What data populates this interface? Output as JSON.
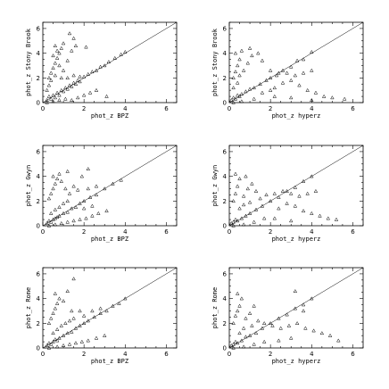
{
  "chart_data": [
    {
      "type": "scatter",
      "xlabel": "phot_z BPZ",
      "ylabel": "phot_z Stony Brook",
      "xlim": [
        0,
        6.5
      ],
      "ylim": [
        0,
        6.5
      ],
      "xticks": [
        0,
        2,
        4,
        6
      ],
      "yticks": [
        0,
        2,
        4,
        6
      ],
      "reference_line": "y = x",
      "marker": "triangle",
      "points": [
        [
          0.2,
          0.2
        ],
        [
          0.3,
          0.5
        ],
        [
          0.4,
          0.3
        ],
        [
          0.5,
          0.6
        ],
        [
          0.6,
          0.4
        ],
        [
          0.7,
          0.8
        ],
        [
          0.8,
          0.6
        ],
        [
          0.9,
          1.0
        ],
        [
          1.0,
          0.9
        ],
        [
          1.1,
          1.2
        ],
        [
          1.2,
          1.1
        ],
        [
          1.3,
          1.4
        ],
        [
          1.4,
          1.3
        ],
        [
          1.5,
          1.6
        ],
        [
          1.6,
          1.5
        ],
        [
          1.7,
          1.8
        ],
        [
          1.8,
          1.7
        ],
        [
          2.0,
          2.1
        ],
        [
          2.2,
          2.3
        ],
        [
          2.4,
          2.5
        ],
        [
          2.6,
          2.6
        ],
        [
          2.8,
          2.9
        ],
        [
          3.0,
          3.0
        ],
        [
          3.2,
          3.3
        ],
        [
          3.5,
          3.6
        ],
        [
          3.8,
          3.9
        ],
        [
          4.0,
          4.1
        ],
        [
          0.3,
          2.0
        ],
        [
          0.4,
          2.4
        ],
        [
          0.5,
          2.8
        ],
        [
          0.6,
          3.2
        ],
        [
          0.7,
          3.6
        ],
        [
          0.8,
          4.0
        ],
        [
          0.9,
          4.4
        ],
        [
          1.0,
          4.8
        ],
        [
          0.5,
          3.8
        ],
        [
          0.6,
          4.6
        ],
        [
          0.7,
          4.2
        ],
        [
          0.8,
          3.0
        ],
        [
          1.0,
          2.6
        ],
        [
          1.2,
          3.4
        ],
        [
          1.4,
          4.2
        ],
        [
          1.6,
          4.6
        ],
        [
          1.3,
          5.6
        ],
        [
          1.5,
          5.2
        ],
        [
          2.1,
          4.5
        ],
        [
          0.2,
          1.0
        ],
        [
          0.3,
          1.4
        ],
        [
          0.4,
          1.8
        ],
        [
          0.2,
          0.0
        ],
        [
          0.5,
          0.1
        ],
        [
          0.8,
          0.2
        ],
        [
          1.1,
          0.3
        ],
        [
          1.4,
          0.2
        ],
        [
          1.7,
          0.4
        ],
        [
          2.0,
          0.6
        ],
        [
          2.3,
          0.8
        ],
        [
          2.6,
          1.0
        ],
        [
          3.1,
          0.5
        ],
        [
          0.6,
          2.2
        ],
        [
          0.9,
          2.0
        ],
        [
          1.2,
          2.0
        ],
        [
          1.5,
          2.2
        ],
        [
          1.8,
          2.1
        ]
      ]
    },
    {
      "type": "scatter",
      "xlabel": "phot_z hyperz",
      "ylabel": "phot_z Stony Brook",
      "xlim": [
        0,
        6.5
      ],
      "ylim": [
        0,
        6.5
      ],
      "xticks": [
        0,
        2,
        4,
        6
      ],
      "yticks": [
        0,
        2,
        4,
        6
      ],
      "reference_line": "y = x",
      "marker": "triangle",
      "points": [
        [
          0.1,
          0.2
        ],
        [
          0.2,
          0.4
        ],
        [
          0.3,
          0.3
        ],
        [
          0.4,
          0.6
        ],
        [
          0.5,
          0.5
        ],
        [
          0.6,
          0.7
        ],
        [
          0.8,
          0.9
        ],
        [
          1.0,
          1.1
        ],
        [
          1.2,
          1.2
        ],
        [
          1.5,
          1.5
        ],
        [
          1.8,
          1.8
        ],
        [
          2.0,
          2.0
        ],
        [
          2.3,
          2.2
        ],
        [
          2.6,
          2.6
        ],
        [
          3.0,
          2.9
        ],
        [
          3.3,
          3.4
        ],
        [
          3.6,
          3.5
        ],
        [
          4.0,
          4.1
        ],
        [
          0.2,
          2.0
        ],
        [
          0.3,
          2.5
        ],
        [
          0.4,
          3.0
        ],
        [
          0.5,
          3.5
        ],
        [
          0.3,
          4.0
        ],
        [
          0.6,
          4.2
        ],
        [
          0.2,
          1.2
        ],
        [
          0.4,
          1.6
        ],
        [
          0.5,
          2.2
        ],
        [
          0.7,
          2.6
        ],
        [
          0.9,
          3.2
        ],
        [
          1.1,
          3.8
        ],
        [
          1.4,
          4.0
        ],
        [
          1.0,
          4.4
        ],
        [
          1.6,
          3.4
        ],
        [
          2.0,
          2.6
        ],
        [
          2.4,
          2.4
        ],
        [
          2.8,
          2.4
        ],
        [
          3.2,
          2.2
        ],
        [
          3.6,
          2.4
        ],
        [
          4.0,
          2.6
        ],
        [
          2.2,
          1.2
        ],
        [
          2.6,
          1.6
        ],
        [
          3.0,
          1.8
        ],
        [
          3.4,
          1.4
        ],
        [
          3.8,
          1.0
        ],
        [
          4.2,
          0.8
        ],
        [
          4.6,
          0.5
        ],
        [
          5.0,
          0.4
        ],
        [
          4.0,
          0.2
        ],
        [
          3.0,
          0.4
        ],
        [
          2.2,
          0.5
        ],
        [
          5.6,
          0.3
        ],
        [
          0.2,
          0.0
        ],
        [
          0.6,
          0.1
        ],
        [
          1.2,
          0.3
        ],
        [
          1.6,
          0.8
        ],
        [
          2.0,
          1.0
        ]
      ]
    },
    {
      "type": "scatter",
      "xlabel": "phot_z BPZ",
      "ylabel": "phot_z Gwyn",
      "xlim": [
        0,
        6.5
      ],
      "ylim": [
        0,
        6.5
      ],
      "xticks": [
        0,
        2,
        4,
        6
      ],
      "yticks": [
        0,
        2,
        4,
        6
      ],
      "reference_line": "y = x",
      "marker": "triangle",
      "points": [
        [
          0.2,
          0.2
        ],
        [
          0.3,
          0.4
        ],
        [
          0.4,
          0.3
        ],
        [
          0.5,
          0.5
        ],
        [
          0.6,
          0.6
        ],
        [
          0.7,
          0.7
        ],
        [
          0.8,
          0.8
        ],
        [
          1.0,
          1.0
        ],
        [
          1.2,
          1.1
        ],
        [
          1.4,
          1.4
        ],
        [
          1.6,
          1.5
        ],
        [
          1.8,
          1.8
        ],
        [
          2.0,
          2.0
        ],
        [
          2.3,
          2.3
        ],
        [
          2.6,
          2.5
        ],
        [
          3.0,
          3.0
        ],
        [
          3.4,
          3.4
        ],
        [
          3.8,
          3.7
        ],
        [
          0.3,
          2.2
        ],
        [
          0.4,
          2.6
        ],
        [
          0.5,
          3.0
        ],
        [
          0.6,
          3.4
        ],
        [
          0.7,
          3.8
        ],
        [
          0.8,
          4.2
        ],
        [
          1.2,
          4.4
        ],
        [
          0.5,
          4.0
        ],
        [
          0.9,
          3.6
        ],
        [
          1.1,
          3.0
        ],
        [
          1.3,
          2.6
        ],
        [
          1.5,
          3.2
        ],
        [
          1.9,
          4.0
        ],
        [
          1.7,
          2.9
        ],
        [
          2.2,
          3.0
        ],
        [
          2.6,
          3.2
        ],
        [
          2.2,
          4.6
        ],
        [
          0.4,
          1.0
        ],
        [
          0.6,
          1.3
        ],
        [
          0.8,
          1.5
        ],
        [
          1.0,
          1.8
        ],
        [
          1.2,
          2.0
        ],
        [
          0.3,
          0.0
        ],
        [
          0.6,
          0.1
        ],
        [
          0.9,
          0.2
        ],
        [
          1.2,
          0.3
        ],
        [
          1.5,
          0.4
        ],
        [
          1.8,
          0.5
        ],
        [
          2.1,
          0.6
        ],
        [
          2.4,
          0.8
        ],
        [
          2.7,
          1.0
        ],
        [
          3.1,
          1.2
        ],
        [
          2.0,
          1.4
        ],
        [
          2.4,
          1.6
        ]
      ]
    },
    {
      "type": "scatter",
      "xlabel": "phot_z hyperz",
      "ylabel": "phot_z Gwyn",
      "xlim": [
        0,
        6.5
      ],
      "ylim": [
        0,
        6.5
      ],
      "xticks": [
        0,
        2,
        4,
        6
      ],
      "yticks": [
        0,
        2,
        4,
        6
      ],
      "reference_line": "y = x",
      "marker": "triangle",
      "points": [
        [
          0.1,
          0.2
        ],
        [
          0.2,
          0.3
        ],
        [
          0.3,
          0.5
        ],
        [
          0.4,
          0.4
        ],
        [
          0.6,
          0.6
        ],
        [
          0.8,
          0.8
        ],
        [
          1.0,
          1.0
        ],
        [
          1.3,
          1.3
        ],
        [
          1.6,
          1.6
        ],
        [
          2.0,
          2.0
        ],
        [
          2.4,
          2.3
        ],
        [
          2.8,
          2.8
        ],
        [
          3.2,
          3.1
        ],
        [
          3.6,
          3.6
        ],
        [
          4.0,
          4.0
        ],
        [
          0.2,
          2.0
        ],
        [
          0.3,
          2.6
        ],
        [
          0.4,
          3.2
        ],
        [
          0.5,
          3.8
        ],
        [
          0.3,
          4.2
        ],
        [
          0.7,
          2.4
        ],
        [
          0.9,
          3.0
        ],
        [
          1.1,
          3.4
        ],
        [
          1.3,
          2.8
        ],
        [
          1.5,
          2.2
        ],
        [
          1.8,
          2.5
        ],
        [
          2.2,
          2.6
        ],
        [
          2.6,
          2.8
        ],
        [
          3.0,
          2.6
        ],
        [
          3.4,
          2.4
        ],
        [
          3.8,
          2.6
        ],
        [
          4.2,
          2.8
        ],
        [
          2.4,
          1.4
        ],
        [
          2.8,
          1.8
        ],
        [
          3.2,
          1.6
        ],
        [
          3.6,
          1.2
        ],
        [
          4.0,
          1.0
        ],
        [
          4.4,
          0.8
        ],
        [
          4.8,
          0.6
        ],
        [
          5.2,
          0.5
        ],
        [
          3.0,
          0.4
        ],
        [
          2.2,
          0.6
        ],
        [
          0.2,
          0.0
        ],
        [
          0.7,
          0.1
        ],
        [
          1.2,
          0.3
        ],
        [
          1.7,
          0.6
        ],
        [
          0.5,
          1.4
        ],
        [
          0.7,
          1.7
        ],
        [
          1.0,
          1.9
        ],
        [
          0.8,
          4.0
        ]
      ]
    },
    {
      "type": "scatter",
      "xlabel": "phot_z BPZ",
      "ylabel": "phot_z Rome",
      "xlim": [
        0,
        6.5
      ],
      "ylim": [
        0,
        6.5
      ],
      "xticks": [
        0,
        2,
        4,
        6
      ],
      "yticks": [
        0,
        2,
        4,
        6
      ],
      "reference_line": "y = x",
      "marker": "triangle",
      "points": [
        [
          0.2,
          0.2
        ],
        [
          0.3,
          0.4
        ],
        [
          0.4,
          0.3
        ],
        [
          0.5,
          0.5
        ],
        [
          0.6,
          0.7
        ],
        [
          0.7,
          0.6
        ],
        [
          0.8,
          0.8
        ],
        [
          1.0,
          1.0
        ],
        [
          1.2,
          1.2
        ],
        [
          1.4,
          1.3
        ],
        [
          1.6,
          1.6
        ],
        [
          1.8,
          1.8
        ],
        [
          2.0,
          2.0
        ],
        [
          2.2,
          2.2
        ],
        [
          2.5,
          2.5
        ],
        [
          2.8,
          2.8
        ],
        [
          3.1,
          3.0
        ],
        [
          3.4,
          3.4
        ],
        [
          3.7,
          3.6
        ],
        [
          4.0,
          4.0
        ],
        [
          0.3,
          2.0
        ],
        [
          0.4,
          2.4
        ],
        [
          0.5,
          2.8
        ],
        [
          0.6,
          3.2
        ],
        [
          0.7,
          3.6
        ],
        [
          0.8,
          4.0
        ],
        [
          0.6,
          4.4
        ],
        [
          1.2,
          4.6
        ],
        [
          1.0,
          3.8
        ],
        [
          0.5,
          1.2
        ],
        [
          0.7,
          1.5
        ],
        [
          0.9,
          1.8
        ],
        [
          1.1,
          2.0
        ],
        [
          1.3,
          2.2
        ],
        [
          1.5,
          2.4
        ],
        [
          2.0,
          2.6
        ],
        [
          2.4,
          3.0
        ],
        [
          2.8,
          3.2
        ],
        [
          0.3,
          0.0
        ],
        [
          0.7,
          0.1
        ],
        [
          1.0,
          0.2
        ],
        [
          1.3,
          0.3
        ],
        [
          1.6,
          0.4
        ],
        [
          1.9,
          0.5
        ],
        [
          2.2,
          0.6
        ],
        [
          2.6,
          0.8
        ],
        [
          3.0,
          1.0
        ],
        [
          1.5,
          5.6
        ],
        [
          1.4,
          3.0
        ],
        [
          1.8,
          3.0
        ]
      ]
    },
    {
      "type": "scatter",
      "xlabel": "phot_z hyperz",
      "ylabel": "phot_z Rome",
      "xlim": [
        0,
        6.5
      ],
      "ylim": [
        0,
        6.5
      ],
      "xticks": [
        0,
        2,
        4,
        6
      ],
      "yticks": [
        0,
        2,
        4,
        6
      ],
      "reference_line": "y = x",
      "marker": "triangle",
      "points": [
        [
          0.1,
          0.2
        ],
        [
          0.2,
          0.3
        ],
        [
          0.3,
          0.5
        ],
        [
          0.4,
          0.4
        ],
        [
          0.6,
          0.6
        ],
        [
          0.8,
          0.9
        ],
        [
          1.0,
          1.0
        ],
        [
          1.3,
          1.2
        ],
        [
          1.6,
          1.6
        ],
        [
          2.0,
          2.0
        ],
        [
          2.4,
          2.4
        ],
        [
          2.8,
          2.7
        ],
        [
          3.2,
          3.2
        ],
        [
          3.6,
          3.5
        ],
        [
          4.0,
          4.0
        ],
        [
          0.2,
          2.0
        ],
        [
          0.3,
          2.6
        ],
        [
          0.4,
          3.0
        ],
        [
          0.5,
          3.4
        ],
        [
          0.6,
          4.0
        ],
        [
          0.4,
          4.4
        ],
        [
          0.8,
          2.4
        ],
        [
          1.0,
          2.8
        ],
        [
          1.2,
          3.4
        ],
        [
          1.4,
          2.2
        ],
        [
          1.7,
          2.0
        ],
        [
          2.1,
          1.8
        ],
        [
          2.5,
          1.6
        ],
        [
          2.9,
          1.8
        ],
        [
          3.3,
          2.0
        ],
        [
          3.7,
          1.6
        ],
        [
          4.1,
          1.4
        ],
        [
          4.5,
          1.2
        ],
        [
          4.9,
          1.0
        ],
        [
          5.3,
          0.6
        ],
        [
          3.0,
          0.8
        ],
        [
          2.4,
          0.6
        ],
        [
          0.2,
          0.0
        ],
        [
          0.7,
          0.1
        ],
        [
          1.2,
          0.3
        ],
        [
          1.7,
          0.5
        ],
        [
          0.5,
          1.2
        ],
        [
          0.7,
          1.6
        ],
        [
          1.1,
          1.8
        ],
        [
          3.2,
          4.6
        ],
        [
          3.6,
          3.0
        ]
      ]
    }
  ]
}
